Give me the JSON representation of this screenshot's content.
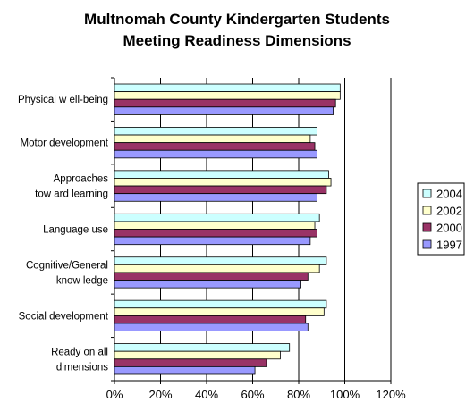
{
  "chart_data": {
    "type": "bar",
    "orientation": "horizontal",
    "title_lines": [
      "Multnomah County Kindergarten Students",
      "Meeting Readiness Dimensions"
    ],
    "categories": [
      [
        "Physical w ell-being"
      ],
      [
        "Motor development"
      ],
      [
        "Approaches",
        "tow ard learning"
      ],
      [
        "Language use"
      ],
      [
        "Cognitive/General",
        "know ledge"
      ],
      [
        "Social development"
      ],
      [
        "Ready on all",
        "dimensions"
      ]
    ],
    "series": [
      {
        "name": "2004",
        "color": "#ccffff",
        "values": [
          98,
          88,
          93,
          89,
          92,
          92,
          76
        ]
      },
      {
        "name": "2002",
        "color": "#ffffcc",
        "values": [
          98,
          85,
          94,
          87,
          89,
          91,
          72
        ]
      },
      {
        "name": "2000",
        "color": "#993366",
        "values": [
          96,
          87,
          92,
          88,
          84,
          83,
          66
        ]
      },
      {
        "name": "1997",
        "color": "#9999ff",
        "values": [
          95,
          88,
          88,
          85,
          81,
          84,
          61
        ]
      }
    ],
    "xlim": [
      0,
      120
    ],
    "xticks": [
      "0%",
      "20%",
      "40%",
      "60%",
      "80%",
      "100%",
      "120%"
    ],
    "xlabel": "",
    "ylabel": "",
    "grid": "vertical",
    "legend_position": "right"
  }
}
